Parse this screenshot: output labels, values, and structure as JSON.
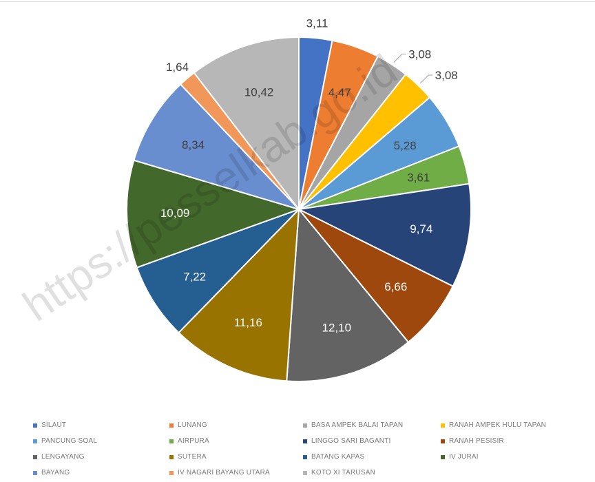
{
  "chart_data": {
    "type": "pie",
    "title": "",
    "categories": [
      "SILAUT",
      "LUNANG",
      "BASA AMPEK BALAI TAPAN",
      "RANAH AMPEK HULU TAPAN",
      "PANCUNG SOAL",
      "AIRPURA",
      "LINGGO SARI BAGANTI",
      "RANAH PESISIR",
      "LENGAYANG",
      "SUTERA",
      "BATANG KAPAS",
      "IV JURAI",
      "BAYANG",
      "IV NAGARI BAYANG UTARA",
      "KOTO XI TARUSAN"
    ],
    "values": [
      3.11,
      4.47,
      3.08,
      3.08,
      5.28,
      3.61,
      9.74,
      6.66,
      12.1,
      11.16,
      7.22,
      10.09,
      8.34,
      1.64,
      10.42
    ],
    "slices_clockwise_from_top": [
      "SILAUT",
      "LUNANG",
      "BASA AMPEK BALAI TAPAN",
      "RANAH AMPEK HULU TAPAN",
      "PANCUNG SOAL",
      "AIRPURA",
      "LINGGO SARI BAGANTI",
      "RANAH PESISIR",
      "LENGAYANG",
      "SUTERA",
      "BATANG KAPAS",
      "IV JURAI",
      "BAYANG",
      "IV NAGARI BAYANG UTARA",
      "KOTO XI TARUSAN"
    ],
    "data_labels": [
      "3,11",
      "4,47",
      "3,08",
      "3,08",
      "5,28",
      "3,61",
      "9,74",
      "6,66",
      "12,10",
      "11,16",
      "7,22",
      "10,09",
      "8,34",
      "1,64",
      "10,42"
    ],
    "colors": [
      "#4472C4",
      "#ED7D31",
      "#A5A5A5",
      "#FFC000",
      "#5B9BD5",
      "#70AD47",
      "#264478",
      "#9E480E",
      "#636363",
      "#997300",
      "#255E91",
      "#43682B",
      "#698ED0",
      "#F1975A",
      "#B7B7B7"
    ],
    "legend_position": "bottom",
    "legend_columns": 4
  },
  "watermark": "https://pesselkab.go.id"
}
